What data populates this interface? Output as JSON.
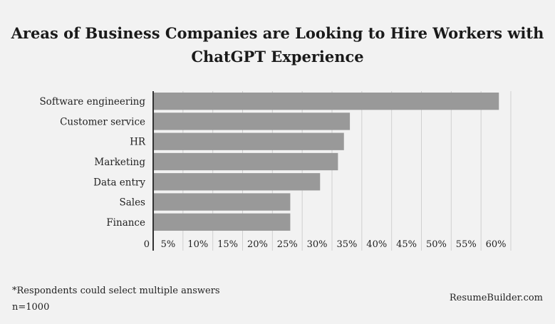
{
  "title_lines": [
    "Areas of Business Companies are Looking to Hire Workers with",
    "ChatGPT Experience"
  ],
  "chart_data": {
    "type": "bar",
    "orientation": "horizontal",
    "categories": [
      "Software engineering",
      "Customer service",
      "HR",
      "Marketing",
      "Data entry",
      "Sales",
      "Finance"
    ],
    "values": [
      58,
      33,
      32,
      31,
      28,
      23,
      23
    ],
    "xlim": [
      0,
      60
    ],
    "x_ticks": [
      "0",
      "5%",
      "10%",
      "15%",
      "20%",
      "25%",
      "30%",
      "35%",
      "40%",
      "45%",
      "50%",
      "55%",
      "60%"
    ],
    "tick_values": [
      0,
      5,
      10,
      15,
      20,
      25,
      30,
      35,
      40,
      45,
      50,
      55,
      60
    ],
    "grid": true,
    "bar_color": "#999999"
  },
  "footnote": "*Respondents could select multiple answers",
  "sample": "n=1000",
  "brand": "ResumeBuilder.com"
}
